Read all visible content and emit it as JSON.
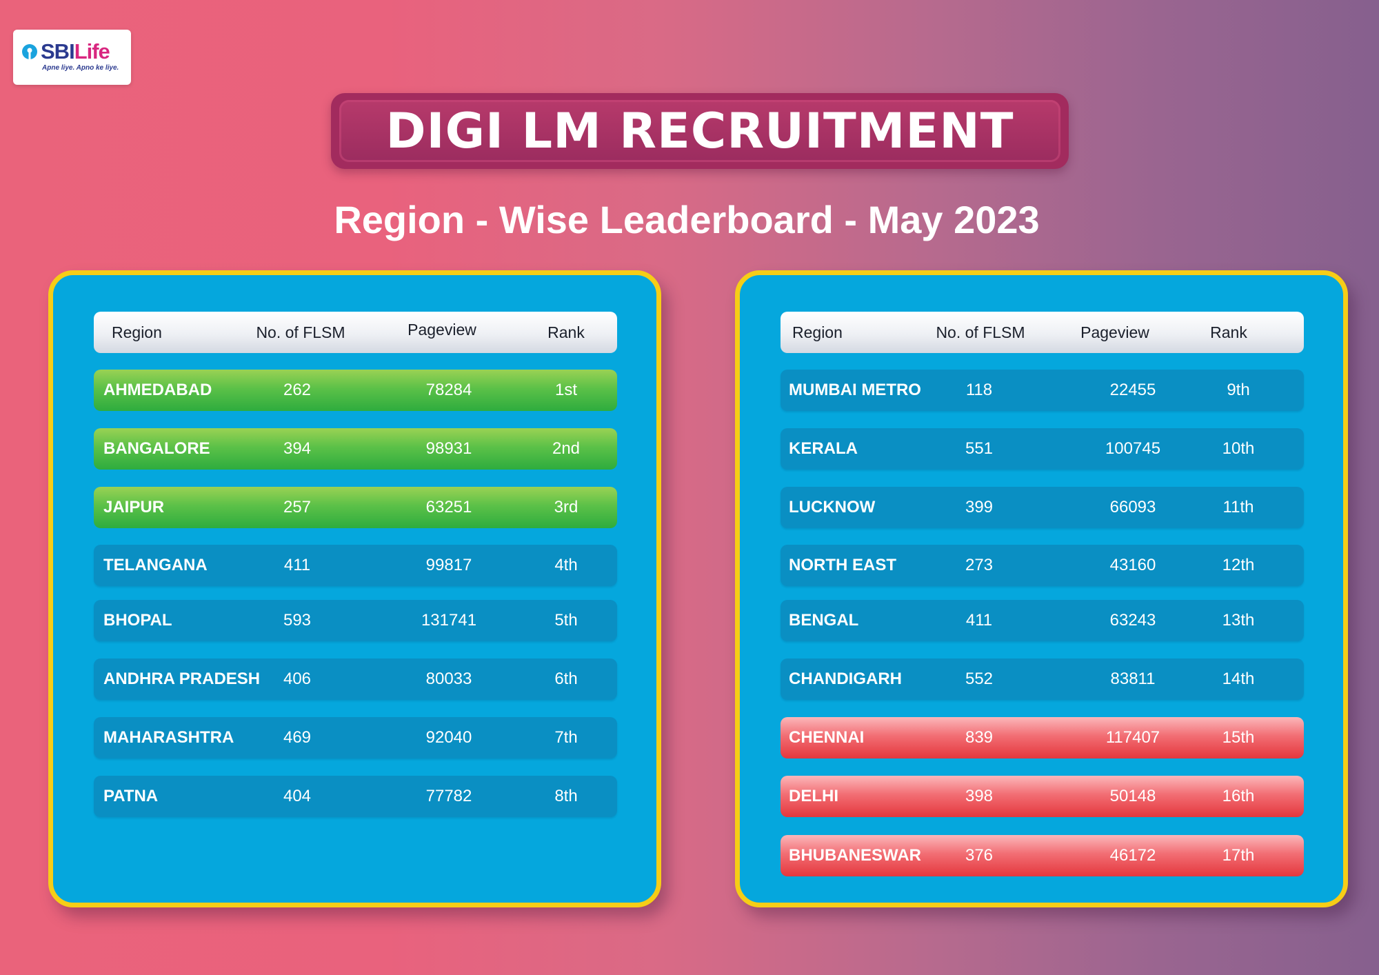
{
  "logo": {
    "brand_primary": "SBI",
    "brand_secondary": "Life",
    "tagline": "Apne liye. Apno ke liye.",
    "brand_color": "#2b3a8f",
    "accent_color": "#d8267f",
    "icon": "keyhole-icon"
  },
  "title": "DIGI LM RECRUITMENT",
  "subtitle": "Region - Wise Leaderboard - May 2023",
  "headers": {
    "region": "Region",
    "flsm": "No. of  FLSM",
    "pageview": "Pageview",
    "rank": "Rank"
  },
  "left_table": [
    {
      "region": "AHMEDABAD",
      "flsm": "262",
      "pageview": "78284",
      "rank": "1st",
      "tier": "top"
    },
    {
      "region": "BANGALORE",
      "flsm": "394",
      "pageview": "98931",
      "rank": "2nd",
      "tier": "top"
    },
    {
      "region": "JAIPUR",
      "flsm": "257",
      "pageview": "63251",
      "rank": "3rd",
      "tier": "top"
    },
    {
      "region": "TELANGANA",
      "flsm": "411",
      "pageview": "99817",
      "rank": "4th",
      "tier": "mid"
    },
    {
      "region": "BHOPAL",
      "flsm": "593",
      "pageview": "131741",
      "rank": "5th",
      "tier": "mid"
    },
    {
      "region": "ANDHRA PRADESH",
      "flsm": "406",
      "pageview": "80033",
      "rank": "6th",
      "tier": "mid"
    },
    {
      "region": "MAHARASHTRA",
      "flsm": "469",
      "pageview": "92040",
      "rank": "7th",
      "tier": "mid"
    },
    {
      "region": "PATNA",
      "flsm": "404",
      "pageview": "77782",
      "rank": "8th",
      "tier": "mid"
    }
  ],
  "right_table": [
    {
      "region": "MUMBAI METRO",
      "flsm": "118",
      "pageview": "22455",
      "rank": "9th",
      "tier": "mid"
    },
    {
      "region": "KERALA",
      "flsm": "551",
      "pageview": "100745",
      "rank": "10th",
      "tier": "mid"
    },
    {
      "region": "LUCKNOW",
      "flsm": "399",
      "pageview": "66093",
      "rank": "11th",
      "tier": "mid"
    },
    {
      "region": "NORTH EAST",
      "flsm": "273",
      "pageview": "43160",
      "rank": "12th",
      "tier": "mid"
    },
    {
      "region": "BENGAL",
      "flsm": "411",
      "pageview": "63243",
      "rank": "13th",
      "tier": "mid"
    },
    {
      "region": "CHANDIGARH",
      "flsm": "552",
      "pageview": "83811",
      "rank": "14th",
      "tier": "mid"
    },
    {
      "region": "CHENNAI",
      "flsm": "839",
      "pageview": "117407",
      "rank": "15th",
      "tier": "bottom"
    },
    {
      "region": "DELHI",
      "flsm": "398",
      "pageview": "50148",
      "rank": "16th",
      "tier": "bottom"
    },
    {
      "region": "BHUBANESWAR",
      "flsm": "376",
      "pageview": "46172",
      "rank": "17th",
      "tier": "bottom"
    }
  ],
  "colors": {
    "panel": "#05a7dd",
    "panel_border": "#f6cd17",
    "row": "#0a8fc3",
    "top_row": "#4cbb45",
    "bottom_row": "#ec5358"
  }
}
